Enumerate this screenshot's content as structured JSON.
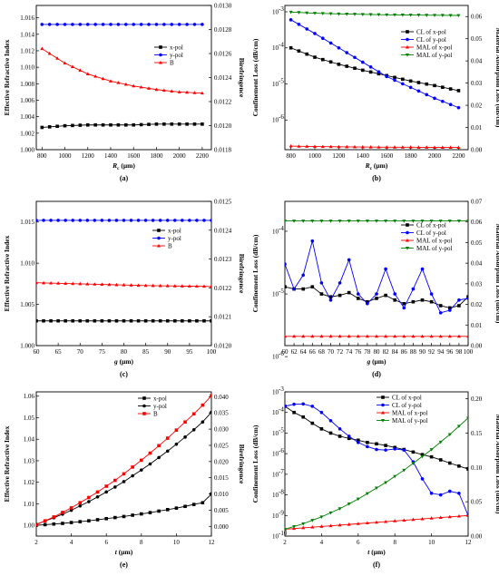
{
  "figure": {
    "panels": [
      {
        "caption": "(a)",
        "xlabel": "R",
        "xlabel_sub": "c",
        "xlabel_unit": " (μm)",
        "ylabel": "Effective Refractive Index",
        "y2label": "Birefringence",
        "xticks": [
          "800",
          "1000",
          "1200",
          "1400",
          "1600",
          "1800",
          "2000",
          "2200"
        ],
        "yticks": [
          "1.000",
          "1.002",
          "1.004",
          "1.006",
          "1.008",
          "1.010",
          "1.012",
          "1.014",
          "1.016"
        ],
        "y2ticks": [
          "0.0118",
          "0.0120",
          "0.0122",
          "0.0124",
          "0.0126",
          "0.0128",
          "0.0130"
        ],
        "legend": [
          "x-pol",
          "y-pol",
          "B"
        ]
      },
      {
        "caption": "(b)",
        "xlabel": "R",
        "xlabel_sub": "c",
        "xlabel_unit": " (μm)",
        "ylabel": "Confinement Loss (dB/cm)",
        "y2label": "Material Absorption Loss (dB/cm)",
        "xticks": [
          "800",
          "1000",
          "1200",
          "1400",
          "1600",
          "1800",
          "2000",
          "2200"
        ],
        "yticks": [
          "10",
          "10",
          "10",
          "10",
          "10"
        ],
        "yexp": [
          "-2",
          "-3",
          "-4",
          "-5",
          "-6"
        ],
        "y2ticks": [
          "0.00",
          "0.01",
          "0.02",
          "0.03",
          "0.04",
          "0.05",
          "0.06"
        ],
        "legend": [
          "CL of x-pol",
          "CL of y-pol",
          "MAL of x-pol",
          "MAL of y-pol"
        ]
      },
      {
        "caption": "(c)",
        "xlabel": "g",
        "xlabel_sub": "",
        "xlabel_unit": " (μm)",
        "ylabel": "Effective Refractive Index",
        "y2label": "Birefringence",
        "xticks": [
          "60",
          "65",
          "70",
          "75",
          "80",
          "85",
          "90",
          "95",
          "100"
        ],
        "yticks": [
          "1.000",
          "1.005",
          "1.010",
          "1.015"
        ],
        "y2ticks": [
          "0.0120",
          "0.0121",
          "0.0122",
          "0.0123",
          "0.0124",
          "0.0125"
        ],
        "legend": [
          "x-pol",
          "y-pol",
          "B"
        ]
      },
      {
        "caption": "(d)",
        "xlabel": "g",
        "xlabel_sub": "",
        "xlabel_unit": " (μm)",
        "ylabel": "Confinement Loss (dB/cm)",
        "y2label": "Material Absorption Loss (dB/cm)",
        "xticks": [
          "60",
          "62",
          "64",
          "66",
          "68",
          "70",
          "72",
          "74",
          "76",
          "78",
          "80",
          "82",
          "84",
          "86",
          "88",
          "90",
          "92",
          "94",
          "96",
          "98",
          "100"
        ],
        "yticks": [
          "10",
          "10",
          "10"
        ],
        "yexp": [
          "-4",
          "-5",
          "-6"
        ],
        "y2ticks": [
          "0.00",
          "0.01",
          "0.02",
          "0.03",
          "0.04",
          "0.05",
          "0.06",
          "0.07"
        ],
        "legend": [
          "CL of x-pol",
          "CL of y-pol",
          "MAL of x-pol",
          "MAL of y-pol"
        ]
      },
      {
        "caption": "(e)",
        "xlabel": "t",
        "xlabel_sub": "",
        "xlabel_unit": " (μm)",
        "ylabel": "Effective Refractive Index",
        "y2label": "Birefringence",
        "xticks": [
          "2",
          "4",
          "6",
          "8",
          "10",
          "12"
        ],
        "yticks": [
          "1.00",
          "1.01",
          "1.02",
          "1.03",
          "1.04",
          "1.05",
          "1.06"
        ],
        "y2ticks": [
          "0.000",
          "0.005",
          "0.010",
          "0.015",
          "0.020",
          "0.025",
          "0.030",
          "0.035",
          "0.040"
        ],
        "legend": [
          "x-pol",
          "y-pol",
          "B"
        ]
      },
      {
        "caption": "(f)",
        "xlabel": "t",
        "xlabel_sub": "",
        "xlabel_unit": " (μm)",
        "ylabel": "Confinement Loss (dB/cm)",
        "y2label": "Material Absorption Loss (dB/cm)",
        "xticks": [
          "2",
          "4",
          "6",
          "8",
          "10",
          "12"
        ],
        "yticks": [
          "10",
          "10",
          "10",
          "10",
          "10",
          "10",
          "10",
          "10"
        ],
        "yexp": [
          "-3",
          "-4",
          "-5",
          "-6",
          "-7",
          "-8",
          "-9",
          "-10"
        ],
        "y2ticks": [
          "0.00",
          "0.05",
          "0.10",
          "0.15",
          "0.20"
        ],
        "legend": [
          "CL of x-pol",
          "CL of y-pol",
          "MAL of x-pol",
          "MAL of y-pol"
        ]
      }
    ]
  },
  "colors": {
    "black": "#000000",
    "blue": "#0000ff",
    "red": "#ff0000",
    "green": "#008000"
  },
  "chart_data": [
    {
      "type": "line",
      "panel": "(a)",
      "x": [
        800,
        1000,
        1200,
        1400,
        1600,
        1800,
        2000,
        2200
      ],
      "series": [
        {
          "name": "x-pol",
          "color": "black",
          "marker": "square",
          "axis": "left",
          "values": [
            1.0027,
            1.0029,
            1.003,
            1.003,
            1.003,
            1.0031,
            1.0031,
            1.0031
          ]
        },
        {
          "name": "y-pol",
          "color": "blue",
          "marker": "circle",
          "axis": "left",
          "values": [
            1.0152,
            1.0152,
            1.0152,
            1.0152,
            1.0152,
            1.0152,
            1.0152,
            1.0152
          ]
        },
        {
          "name": "B",
          "color": "red",
          "marker": "triangle",
          "axis": "right",
          "values": [
            0.01264,
            0.01252,
            0.01243,
            0.01237,
            0.01233,
            0.0123,
            0.01228,
            0.01227
          ]
        }
      ],
      "xlim": [
        750,
        2280
      ],
      "ylim": [
        1.0,
        1.0175
      ],
      "y2lim": [
        0.0118,
        0.013
      ]
    },
    {
      "type": "line",
      "panel": "(b)",
      "x": [
        800,
        1000,
        1200,
        1400,
        1600,
        1800,
        2000,
        2200
      ],
      "series": [
        {
          "name": "CL of x-pol",
          "color": "black",
          "marker": "square",
          "axis": "left",
          "values": [
            0.0001,
            5.5e-05,
            3.5e-05,
            2.4e-05,
            1.7e-05,
            1.2e-05,
            9e-06,
            6.5e-06
          ]
        },
        {
          "name": "CL of y-pol",
          "color": "blue",
          "marker": "circle",
          "axis": "left",
          "values": [
            0.0006,
            0.00025,
            0.0001,
            4e-05,
            1.6e-05,
            8e-06,
            4e-06,
            2.2e-06
          ]
        },
        {
          "name": "MAL of x-pol",
          "color": "red",
          "marker": "triangle",
          "axis": "right",
          "values": [
            0.0016,
            0.0014,
            0.0013,
            0.0012,
            0.0011,
            0.0011,
            0.001,
            0.001
          ]
        },
        {
          "name": "MAL of y-pol",
          "color": "green",
          "marker": "triangle-down",
          "axis": "right",
          "values": [
            0.062,
            0.0615,
            0.0612,
            0.061,
            0.0608,
            0.0607,
            0.0606,
            0.0605
          ]
        }
      ],
      "xlim": [
        750,
        2280
      ],
      "ylim_log": [
        1.5e-07,
        0.0015
      ],
      "y2lim": [
        0.0,
        0.065
      ]
    },
    {
      "type": "line",
      "panel": "(c)",
      "x": [
        60,
        65,
        70,
        75,
        80,
        85,
        90,
        95,
        100
      ],
      "series": [
        {
          "name": "x-pol",
          "color": "black",
          "marker": "square",
          "axis": "left",
          "values": [
            1.003,
            1.003,
            1.003,
            1.003,
            1.003,
            1.003,
            1.003,
            1.003,
            1.003
          ]
        },
        {
          "name": "y-pol",
          "color": "blue",
          "marker": "circle",
          "axis": "left",
          "values": [
            1.0152,
            1.0152,
            1.0152,
            1.0152,
            1.0152,
            1.0152,
            1.0152,
            1.0152,
            1.0152
          ]
        },
        {
          "name": "B",
          "color": "red",
          "marker": "triangle",
          "axis": "right",
          "values": [
            0.012218,
            0.012216,
            0.012214,
            0.012212,
            0.01221,
            0.012208,
            0.012207,
            0.012206,
            0.012205
          ]
        }
      ],
      "xlim": [
        60,
        100
      ],
      "ylim": [
        1.0,
        1.0175
      ],
      "y2lim": [
        0.012,
        0.0125
      ]
    },
    {
      "type": "line",
      "panel": "(d)",
      "x": [
        60,
        62,
        64,
        66,
        68,
        70,
        72,
        74,
        76,
        78,
        80,
        82,
        84,
        86,
        88,
        90,
        92,
        94,
        96,
        98,
        100
      ],
      "series": [
        {
          "name": "CL of x-pol",
          "color": "black",
          "marker": "square",
          "axis": "left",
          "values": [
            1.3e-05,
            1.2e-05,
            1.2e-05,
            1.3e-05,
            1e-05,
            9e-06,
            9.5e-06,
            1.05e-05,
            8.5e-06,
            7.5e-06,
            8.5e-06,
            9.5e-06,
            8e-06,
            7e-06,
            7.5e-06,
            8e-06,
            7.5e-06,
            6.5e-06,
            6e-06,
            6.5e-06,
            9e-06
          ]
        },
        {
          "name": "CL of y-pol",
          "color": "blue",
          "marker": "circle",
          "axis": "left",
          "values": [
            3e-05,
            1.2e-05,
            2e-05,
            7e-05,
            1.5e-05,
            8e-06,
            1.5e-05,
            3.5e-05,
            1e-05,
            7e-06,
            1e-05,
            2.5e-05,
            1e-05,
            6e-06,
            1.2e-05,
            2.5e-05,
            1e-05,
            5e-06,
            5.5e-06,
            8e-06,
            8.5e-06
          ]
        },
        {
          "name": "MAL of x-pol",
          "color": "red",
          "marker": "triangle",
          "axis": "right",
          "values": [
            0.0045,
            0.0045,
            0.0045,
            0.0045,
            0.0045,
            0.0045,
            0.0045,
            0.0045,
            0.0045,
            0.0045,
            0.0045,
            0.0045,
            0.0045,
            0.0045,
            0.0045,
            0.0045,
            0.0045,
            0.0045,
            0.0045,
            0.0045,
            0.0045
          ]
        },
        {
          "name": "MAL of y-pol",
          "color": "green",
          "marker": "triangle-down",
          "axis": "right",
          "values": [
            0.0605,
            0.0605,
            0.0605,
            0.0605,
            0.0605,
            0.0605,
            0.0605,
            0.0605,
            0.0605,
            0.0605,
            0.0605,
            0.0605,
            0.0605,
            0.0605,
            0.0605,
            0.0605,
            0.0605,
            0.0605,
            0.0605,
            0.0605,
            0.0605
          ]
        }
      ],
      "xlim": [
        60,
        100
      ],
      "ylim_log": [
        1.5e-06,
        0.0003
      ],
      "y2lim": [
        0.0,
        0.07
      ]
    },
    {
      "type": "line",
      "panel": "(e)",
      "x": [
        2,
        2.5,
        3,
        3.5,
        4,
        4.5,
        5,
        5.5,
        6,
        6.5,
        7,
        7.5,
        8,
        8.5,
        9,
        9.5,
        10,
        10.5,
        11,
        11.5,
        12
      ],
      "series": [
        {
          "name": "x-pol",
          "color": "black",
          "marker": "square",
          "axis": "left",
          "values": [
            1.0,
            1.0003,
            1.0006,
            1.0009,
            1.0013,
            1.0017,
            1.0021,
            1.0026,
            1.0031,
            1.0036,
            1.0041,
            1.0047,
            1.0053,
            1.0059,
            1.0066,
            1.0073,
            1.008,
            1.0088,
            1.0097,
            1.0105,
            1.0145
          ]
        },
        {
          "name": "y-pol",
          "color": "black",
          "marker": "circle",
          "axis": "left",
          "values": [
            1.0005,
            1.002,
            1.0035,
            1.0052,
            1.007,
            1.009,
            1.011,
            1.0132,
            1.0155,
            1.0178,
            1.0203,
            1.023,
            1.0257,
            1.0285,
            1.0315,
            1.0345,
            1.0377,
            1.041,
            1.0444,
            1.048,
            1.0525
          ]
        },
        {
          "name": "B",
          "color": "red",
          "marker": "square",
          "axis": "right",
          "values": [
            0.0005,
            0.0017,
            0.0029,
            0.0043,
            0.0057,
            0.0073,
            0.0089,
            0.0106,
            0.0124,
            0.0142,
            0.0162,
            0.0183,
            0.0204,
            0.0226,
            0.0249,
            0.0272,
            0.0297,
            0.0322,
            0.0347,
            0.0374,
            0.0403
          ]
        }
      ],
      "xlim": [
        2,
        12
      ],
      "ylim": [
        0.995,
        1.062
      ],
      "y2lim": [
        -0.003,
        0.0415
      ]
    },
    {
      "type": "line",
      "panel": "(f)",
      "x": [
        2,
        2.5,
        3,
        3.5,
        4,
        4.5,
        5,
        5.5,
        6,
        6.5,
        7,
        7.5,
        8,
        8.5,
        9,
        9.5,
        10,
        10.5,
        11,
        11.5,
        12
      ],
      "series": [
        {
          "name": "CL of x-pol",
          "color": "black",
          "marker": "square",
          "axis": "left",
          "values": [
            0.0002,
            0.0001,
            6e-05,
            3e-05,
            1.6e-05,
            1e-05,
            7e-06,
            5.5e-06,
            4.5e-06,
            3.5e-06,
            3e-06,
            2.5e-06,
            2e-06,
            1.6e-06,
            1.2e-06,
            9e-07,
            7e-07,
            5e-07,
            3.5e-07,
            2.5e-07,
            1.8e-07
          ]
        },
        {
          "name": "CL of y-pol",
          "color": "blue",
          "marker": "circle",
          "axis": "left",
          "values": [
            0.0002,
            0.00025,
            0.00026,
            0.0002,
            0.0001,
            4e-05,
            1.6e-05,
            7e-06,
            3.5e-06,
            2.2e-06,
            1.6e-06,
            1.5e-06,
            1.7e-06,
            1.5e-06,
            4e-07,
            6e-08,
            1.2e-08,
            1e-08,
            1.5e-08,
            1.2e-08,
            1e-09
          ]
        },
        {
          "name": "MAL of x-pol",
          "color": "red",
          "marker": "triangle",
          "axis": "right",
          "values": [
            0.01,
            0.011,
            0.012,
            0.013,
            0.014,
            0.015,
            0.016,
            0.017,
            0.018,
            0.019,
            0.02,
            0.021,
            0.022,
            0.023,
            0.024,
            0.025,
            0.026,
            0.027,
            0.028,
            0.029,
            0.03
          ]
        },
        {
          "name": "MAL of y-pol",
          "color": "green",
          "marker": "triangle-down",
          "axis": "right",
          "values": [
            0.01,
            0.014,
            0.018,
            0.023,
            0.028,
            0.034,
            0.04,
            0.047,
            0.054,
            0.062,
            0.07,
            0.078,
            0.087,
            0.096,
            0.106,
            0.116,
            0.126,
            0.137,
            0.148,
            0.16,
            0.172
          ]
        }
      ],
      "xlim": [
        2,
        12
      ],
      "ylim_log": [
        1e-10,
        0.001
      ],
      "y2lim": [
        0.0,
        0.21
      ]
    }
  ]
}
